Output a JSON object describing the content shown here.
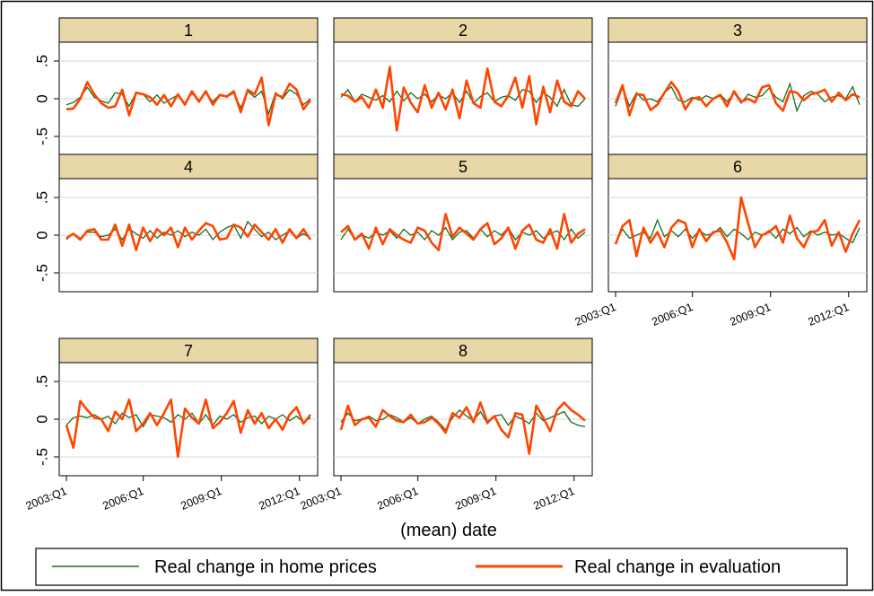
{
  "figure": {
    "xlabel": "(mean) date",
    "y_ticks": [
      ".5",
      "0",
      "-.5"
    ],
    "x_ticks": [
      "2003:Q1",
      "2006:Q1",
      "2009:Q1",
      "2012:Q1"
    ],
    "legend": {
      "position": "bottom",
      "items": [
        {
          "label": "Real change in home prices",
          "color": "#1a6b1a"
        },
        {
          "label": "Real change in evaluation",
          "color": "#ff4500"
        }
      ]
    },
    "strip_color": "#e8d8a8"
  },
  "chart_data": {
    "type": "line",
    "x_range": [
      "2003:Q1",
      "2012:Q2"
    ],
    "y_range": [
      -0.75,
      0.75
    ],
    "series_names": [
      "Real change in home prices",
      "Real change in evaluation"
    ],
    "panels": [
      {
        "label": "1",
        "home_prices": [
          -0.08,
          -0.05,
          0.02,
          0.15,
          0.02,
          -0.03,
          -0.06,
          0.08,
          0.06,
          -0.1,
          0.08,
          0.06,
          -0.04,
          0.05,
          -0.06,
          0.0,
          0.05,
          -0.06,
          0.07,
          -0.02,
          0.08,
          -0.04,
          0.06,
          0.02,
          0.08,
          -0.12,
          0.1,
          0.02,
          0.1,
          -0.2,
          0.08,
          0.0,
          0.12,
          0.06,
          -0.08,
          0.0
        ],
        "evaluation": [
          -0.14,
          -0.13,
          0.0,
          0.22,
          0.06,
          -0.06,
          -0.12,
          -0.1,
          0.12,
          -0.22,
          0.08,
          0.06,
          0.02,
          -0.08,
          0.05,
          -0.1,
          0.06,
          -0.08,
          0.1,
          -0.04,
          0.1,
          -0.08,
          0.05,
          0.03,
          0.1,
          -0.18,
          0.12,
          0.06,
          0.28,
          -0.35,
          0.06,
          0.02,
          0.2,
          0.12,
          -0.14,
          -0.02
        ]
      },
      {
        "label": "2",
        "home_prices": [
          0.02,
          0.12,
          -0.04,
          0.06,
          0.02,
          -0.02,
          0.04,
          -0.04,
          0.1,
          -0.03,
          0.08,
          0.0,
          0.06,
          -0.04,
          0.05,
          0.0,
          0.08,
          -0.05,
          0.1,
          -0.06,
          0.03,
          0.08,
          -0.04,
          0.02,
          0.04,
          -0.02,
          0.12,
          0.1,
          -0.05,
          0.08,
          0.02,
          -0.1,
          0.12,
          -0.08,
          -0.1,
          0.0
        ],
        "evaluation": [
          0.06,
          0.04,
          -0.04,
          0.02,
          -0.12,
          0.12,
          -0.12,
          0.42,
          -0.42,
          0.15,
          -0.05,
          -0.18,
          0.18,
          -0.12,
          0.08,
          -0.14,
          0.12,
          -0.26,
          0.24,
          -0.06,
          -0.12,
          0.4,
          -0.04,
          -0.1,
          0.04,
          0.28,
          -0.12,
          0.3,
          -0.34,
          0.16,
          -0.18,
          0.24,
          -0.04,
          -0.1,
          0.1,
          0.0
        ]
      },
      {
        "label": "3",
        "home_prices": [
          -0.1,
          0.15,
          -0.1,
          0.08,
          -0.02,
          0.0,
          -0.04,
          0.08,
          0.16,
          -0.02,
          -0.04,
          0.02,
          -0.02,
          0.04,
          0.0,
          0.06,
          -0.04,
          0.08,
          -0.06,
          0.06,
          0.02,
          0.04,
          0.14,
          0.02,
          -0.04,
          0.2,
          -0.16,
          0.04,
          0.1,
          0.06,
          -0.04,
          0.02,
          0.04,
          0.0,
          0.16,
          -0.08
        ],
        "evaluation": [
          -0.06,
          0.18,
          -0.22,
          0.06,
          0.05,
          -0.15,
          -0.08,
          0.08,
          0.22,
          0.1,
          -0.14,
          0.0,
          0.02,
          -0.1,
          0.0,
          0.05,
          -0.1,
          0.1,
          -0.04,
          0.0,
          -0.05,
          0.15,
          0.18,
          -0.06,
          -0.16,
          0.1,
          0.08,
          -0.02,
          0.06,
          0.08,
          0.12,
          -0.04,
          0.08,
          -0.02,
          0.06,
          0.02
        ]
      },
      {
        "label": "4",
        "home_prices": [
          -0.06,
          0.02,
          -0.04,
          0.04,
          0.04,
          -0.02,
          0.0,
          0.08,
          -0.06,
          0.08,
          0.02,
          -0.04,
          0.06,
          -0.04,
          0.04,
          0.0,
          0.06,
          -0.02,
          0.04,
          0.0,
          0.08,
          -0.06,
          0.04,
          0.1,
          0.14,
          -0.04,
          0.18,
          0.08,
          -0.02,
          0.04,
          -0.06,
          0.0,
          0.06,
          -0.04,
          0.02,
          -0.04
        ],
        "evaluation": [
          -0.04,
          0.02,
          -0.06,
          0.06,
          0.08,
          -0.06,
          -0.06,
          0.14,
          -0.14,
          0.14,
          -0.2,
          0.1,
          -0.08,
          0.08,
          0.0,
          0.1,
          -0.16,
          0.1,
          -0.06,
          0.06,
          0.16,
          0.12,
          -0.06,
          -0.04,
          0.14,
          0.1,
          -0.02,
          0.14,
          0.04,
          -0.06,
          0.08,
          -0.1,
          0.08,
          -0.04,
          0.08,
          -0.06
        ]
      },
      {
        "label": "5",
        "home_prices": [
          -0.06,
          0.08,
          -0.06,
          0.0,
          -0.04,
          0.04,
          0.0,
          0.06,
          -0.04,
          0.08,
          0.0,
          0.04,
          -0.06,
          0.06,
          0.0,
          0.1,
          -0.06,
          0.04,
          0.06,
          -0.04,
          0.08,
          -0.02,
          0.06,
          0.0,
          0.1,
          -0.06,
          0.04,
          0.0,
          0.06,
          -0.04,
          0.02,
          0.06,
          -0.06,
          0.08,
          -0.04,
          0.04
        ],
        "evaluation": [
          0.04,
          0.12,
          -0.06,
          0.02,
          -0.18,
          0.1,
          -0.12,
          0.08,
          0.0,
          -0.06,
          -0.1,
          0.1,
          0.06,
          -0.1,
          -0.2,
          0.28,
          -0.02,
          0.1,
          0.02,
          -0.06,
          0.08,
          0.16,
          -0.12,
          -0.04,
          0.1,
          -0.18,
          0.06,
          0.14,
          -0.06,
          -0.1,
          0.08,
          -0.18,
          0.28,
          -0.1,
          0.02,
          0.08
        ]
      },
      {
        "label": "6",
        "home_prices": [
          -0.1,
          0.08,
          -0.04,
          0.0,
          0.04,
          -0.04,
          0.2,
          -0.02,
          0.06,
          -0.02,
          0.08,
          -0.04,
          0.06,
          0.0,
          0.02,
          0.1,
          -0.02,
          0.08,
          0.02,
          -0.06,
          0.04,
          0.0,
          0.06,
          -0.04,
          0.08,
          0.02,
          0.1,
          -0.02,
          0.06,
          0.0,
          0.04,
          0.0,
          0.02,
          -0.04,
          -0.1,
          0.1
        ],
        "evaluation": [
          -0.12,
          0.12,
          0.2,
          -0.28,
          0.1,
          -0.1,
          0.04,
          -0.16,
          0.1,
          0.2,
          0.16,
          -0.16,
          0.08,
          -0.08,
          0.04,
          0.06,
          -0.1,
          -0.32,
          0.5,
          0.16,
          -0.16,
          0.0,
          0.04,
          0.12,
          -0.1,
          0.26,
          -0.04,
          -0.16,
          0.04,
          0.06,
          0.2,
          -0.14,
          0.04,
          -0.22,
          0.02,
          0.2
        ]
      },
      {
        "label": "7",
        "home_prices": [
          -0.08,
          0.02,
          0.04,
          0.02,
          0.06,
          0.0,
          0.04,
          -0.06,
          0.08,
          0.02,
          0.06,
          -0.1,
          0.06,
          0.04,
          0.02,
          -0.04,
          0.06,
          0.0,
          0.08,
          -0.06,
          0.06,
          -0.08,
          0.04,
          0.0,
          0.06,
          -0.04,
          0.02,
          0.04,
          -0.06,
          0.04,
          0.0,
          0.06,
          -0.02,
          0.04,
          -0.04,
          0.02
        ],
        "evaluation": [
          -0.08,
          -0.38,
          0.24,
          0.12,
          0.02,
          0.0,
          -0.16,
          0.1,
          0.0,
          0.26,
          -0.16,
          -0.06,
          0.08,
          -0.08,
          0.08,
          0.26,
          -0.5,
          0.14,
          0.02,
          -0.06,
          0.26,
          -0.12,
          -0.04,
          0.08,
          0.24,
          -0.18,
          0.12,
          -0.06,
          0.08,
          -0.12,
          0.0,
          -0.14,
          0.06,
          0.16,
          -0.06,
          0.06
        ]
      },
      {
        "label": "8",
        "home_prices": [
          -0.04,
          0.08,
          -0.02,
          0.0,
          0.04,
          -0.02,
          0.0,
          0.06,
          0.02,
          -0.04,
          0.02,
          -0.06,
          0.0,
          0.04,
          -0.04,
          -0.14,
          0.02,
          0.12,
          0.04,
          -0.02,
          0.1,
          -0.06,
          0.04,
          0.06,
          -0.08,
          0.04,
          0.0,
          -0.06,
          0.08,
          -0.02,
          0.02,
          0.06,
          0.1,
          -0.04,
          -0.08,
          -0.1
        ],
        "evaluation": [
          -0.14,
          0.18,
          -0.08,
          0.0,
          0.02,
          -0.1,
          0.12,
          0.04,
          -0.02,
          -0.04,
          0.06,
          -0.06,
          -0.04,
          0.02,
          -0.06,
          -0.18,
          0.08,
          0.02,
          0.16,
          -0.04,
          0.22,
          -0.04,
          0.04,
          -0.14,
          -0.24,
          0.08,
          0.06,
          -0.46,
          0.18,
          0.02,
          -0.16,
          0.12,
          0.22,
          0.12,
          0.06,
          -0.02
        ]
      }
    ]
  }
}
